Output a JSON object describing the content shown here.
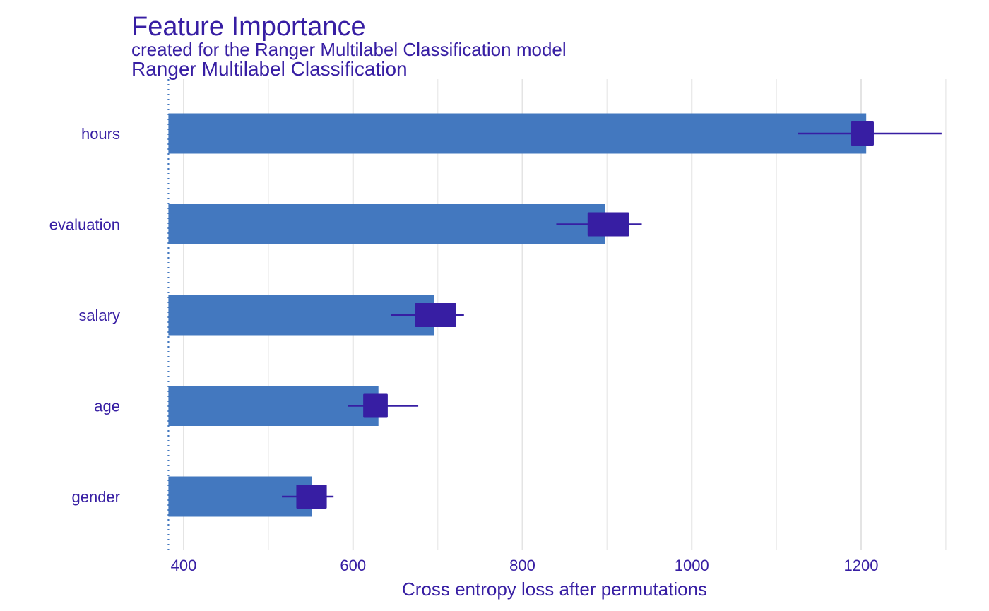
{
  "chart_data": {
    "type": "bar",
    "orientation": "horizontal",
    "title": "Feature Importance",
    "subtitle": "created for the Ranger Multilabel Classification model",
    "panel_label": "Ranger Multilabel Classification",
    "xlabel": "Cross entropy loss after permutations",
    "ylabel": "",
    "xlim": [
      373,
      1300
    ],
    "x_ticks": [
      400,
      600,
      800,
      1000,
      1200
    ],
    "grid": true,
    "baseline": 382,
    "categories": [
      "hours",
      "evaluation",
      "salary",
      "age",
      "gender"
    ],
    "values": [
      1206,
      898,
      696,
      630,
      551
    ],
    "box_low": [
      1188,
      877,
      673,
      612,
      533
    ],
    "box_high": [
      1215,
      926,
      722,
      641,
      569
    ],
    "whisker_low": [
      1125,
      840,
      645,
      594,
      516
    ],
    "whisker_high": [
      1295,
      941,
      731,
      677,
      577
    ],
    "bar_color": "#4378bf",
    "box_color": "#371ea3"
  }
}
